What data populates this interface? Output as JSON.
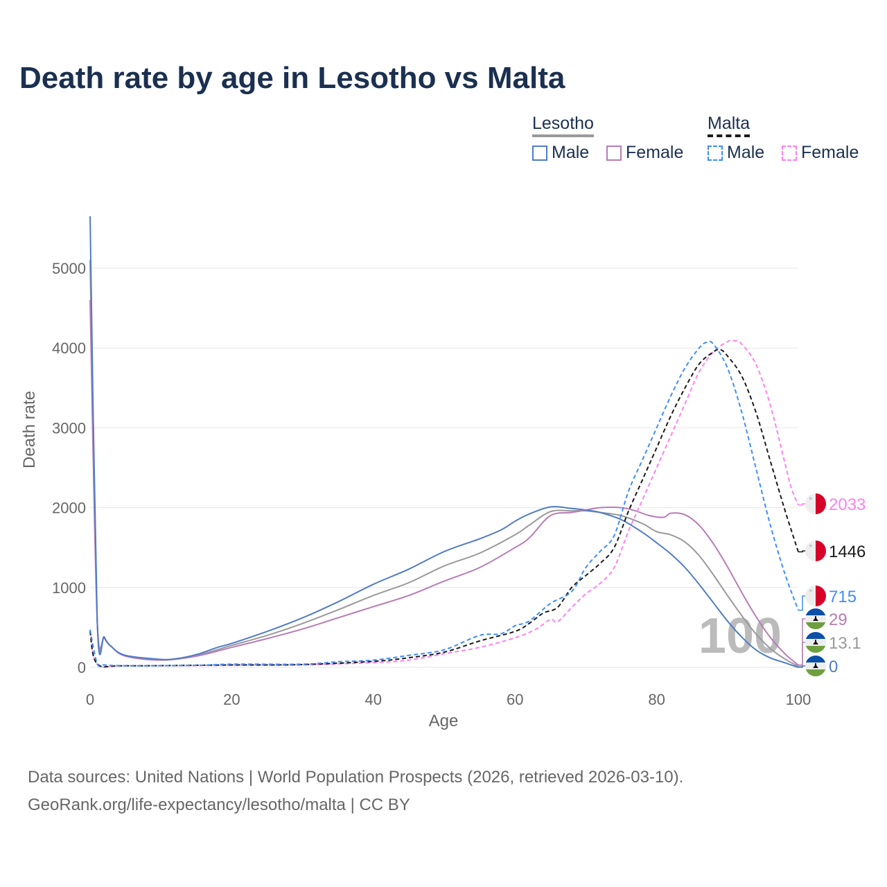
{
  "title": "Death rate by age in Lesotho vs Malta",
  "legend": {
    "groups": [
      {
        "name": "Lesotho",
        "items": [
          "Male",
          "Female"
        ]
      },
      {
        "name": "Malta",
        "items": [
          "Male",
          "Female"
        ]
      }
    ]
  },
  "footer": {
    "line1": "Data sources: United Nations | World Population Prospects (2026, retrieved 2026-03-10).",
    "line2": "GeoRank.org/life-expectancy/lesotho/malta | CC BY"
  },
  "colors": {
    "lesotho_male": "#4f7bc6",
    "lesotho_female": "#b77cb7",
    "lesotho_total": "#999999",
    "malta_male": "#3d8df5",
    "malta_female": "#ff7ff0",
    "malta_total": "#1a1a1a"
  },
  "chart_data": {
    "type": "line",
    "xlabel": "Age",
    "ylabel": "Death rate",
    "xlim": [
      0,
      100
    ],
    "ylim": [
      0,
      5700
    ],
    "xticks": [
      "0",
      "20",
      "40",
      "60",
      "80",
      "100"
    ],
    "yticks": [
      "0",
      "1000",
      "2000",
      "3000",
      "4000",
      "5000"
    ],
    "highlight_age": "100",
    "series": [
      {
        "key": "lesotho_total",
        "name": "Lesotho",
        "dashed": false,
        "end_label": "13.1",
        "x": [
          0,
          1,
          2,
          3,
          5,
          10,
          15,
          20,
          25,
          30,
          35,
          40,
          45,
          50,
          55,
          60,
          62,
          65,
          68,
          70,
          72,
          75,
          78,
          80,
          82,
          84,
          86,
          88,
          90,
          92,
          94,
          96,
          98,
          100
        ],
        "y": [
          5100,
          600,
          375,
          260,
          145,
          95,
          150,
          275,
          400,
          550,
          720,
          900,
          1060,
          1270,
          1430,
          1660,
          1780,
          1950,
          1960,
          1960,
          1940,
          1900,
          1800,
          1700,
          1660,
          1570,
          1400,
          1160,
          900,
          650,
          420,
          240,
          110,
          13.1
        ]
      },
      {
        "key": "lesotho_female",
        "name": "Lesotho Female",
        "dashed": false,
        "end_label": "29",
        "x": [
          0,
          1,
          2,
          3,
          5,
          10,
          15,
          20,
          25,
          30,
          35,
          40,
          45,
          50,
          55,
          60,
          62,
          65,
          68,
          70,
          72,
          75,
          77,
          79,
          81,
          82,
          84,
          86,
          88,
          90,
          92,
          94,
          96,
          98,
          99,
          100
        ],
        "y": [
          4600,
          600,
          370,
          260,
          140,
          90,
          140,
          250,
          360,
          480,
          620,
          760,
          900,
          1080,
          1250,
          1500,
          1620,
          1900,
          1940,
          1970,
          2000,
          2000,
          1960,
          1900,
          1880,
          1930,
          1910,
          1780,
          1550,
          1260,
          940,
          640,
          380,
          180,
          100,
          29
        ]
      },
      {
        "key": "lesotho_male",
        "name": "Lesotho Male",
        "dashed": false,
        "end_label": "0",
        "x": [
          0,
          1,
          2,
          3,
          5,
          10,
          12,
          15,
          18,
          20,
          25,
          30,
          35,
          40,
          45,
          50,
          55,
          58,
          60,
          62,
          65,
          68,
          70,
          72,
          75,
          78,
          80,
          82,
          84,
          86,
          88,
          90,
          92,
          94,
          96,
          98,
          100
        ],
        "y": [
          5650,
          600,
          380,
          260,
          150,
          100,
          105,
          160,
          250,
          300,
          450,
          620,
          820,
          1040,
          1230,
          1450,
          1610,
          1720,
          1830,
          1920,
          2010,
          1990,
          1970,
          1940,
          1850,
          1690,
          1560,
          1420,
          1250,
          1040,
          810,
          580,
          380,
          220,
          120,
          60,
          0
        ]
      },
      {
        "key": "malta_female",
        "name": "Malta Female",
        "dashed": true,
        "end_label": "2033",
        "x": [
          0,
          1,
          5,
          20,
          30,
          40,
          45,
          50,
          55,
          60,
          63,
          65,
          66,
          68,
          70,
          72,
          74,
          76,
          78,
          80,
          82,
          84,
          86,
          88,
          90,
          91,
          92,
          94,
          96,
          98,
          99,
          100
        ],
        "y": [
          470,
          40,
          20,
          25,
          30,
          60,
          90,
          170,
          250,
          370,
          480,
          600,
          570,
          750,
          920,
          1050,
          1250,
          1700,
          2100,
          2500,
          2900,
          3300,
          3700,
          3950,
          4080,
          4090,
          4050,
          3800,
          3300,
          2600,
          2250,
          2033
        ]
      },
      {
        "key": "malta_total",
        "name": "Malta",
        "dashed": true,
        "end_label": "1446",
        "x": [
          0,
          1,
          5,
          20,
          30,
          40,
          45,
          50,
          55,
          60,
          62,
          64,
          66,
          68,
          70,
          72,
          74,
          76,
          78,
          80,
          82,
          84,
          86,
          88,
          89,
          90,
          92,
          94,
          96,
          98,
          100
        ],
        "y": [
          450,
          45,
          20,
          30,
          35,
          75,
          120,
          190,
          330,
          450,
          550,
          680,
          750,
          1000,
          1150,
          1300,
          1500,
          1950,
          2350,
          2750,
          3150,
          3500,
          3800,
          3950,
          3980,
          3900,
          3650,
          3200,
          2600,
          2000,
          1446
        ]
      },
      {
        "key": "malta_male",
        "name": "Malta Male",
        "dashed": true,
        "end_label": "715",
        "x": [
          0,
          1,
          2,
          5,
          15,
          20,
          30,
          35,
          40,
          45,
          50,
          55,
          58,
          60,
          62,
          65,
          68,
          70,
          72,
          74,
          76,
          78,
          80,
          82,
          84,
          86,
          87,
          88,
          90,
          92,
          94,
          96,
          98,
          100
        ],
        "y": [
          470,
          50,
          30,
          20,
          25,
          40,
          40,
          70,
          90,
          150,
          220,
          400,
          420,
          520,
          580,
          800,
          950,
          1250,
          1450,
          1650,
          2200,
          2600,
          3000,
          3400,
          3750,
          4000,
          4070,
          4050,
          3750,
          3200,
          2500,
          1800,
          1200,
          715
        ]
      }
    ]
  }
}
